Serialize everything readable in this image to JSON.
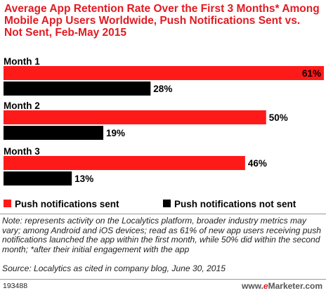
{
  "chart_data": {
    "type": "bar",
    "orientation": "horizontal",
    "title": "Average App Retention Rate Over the First 3 Months* Among Mobile App Users Worldwide, Push Notifications Sent vs. Not Sent, Feb-May 2015",
    "categories": [
      "Month 1",
      "Month 2",
      "Month 3"
    ],
    "series": [
      {
        "name": "Push notifications sent",
        "values": [
          61,
          50,
          46
        ],
        "labels": [
          "61%",
          "50%",
          "46%"
        ],
        "color": "#ff1a1a"
      },
      {
        "name": "Push notifications not sent",
        "values": [
          28,
          19,
          13
        ],
        "labels": [
          "28%",
          "19%",
          "13%"
        ],
        "color": "#000000"
      }
    ],
    "xlim": [
      0,
      61
    ],
    "grid": false,
    "legend_position": "bottom"
  },
  "note": "Note: represents activity on the Localytics platform, broader industry metrics may vary; among Android and iOS devices; read as 61% of new app users receiving push notifications launched the app within the first month, while 50% did within the second month; *after their initial engagement with the app",
  "source": "Source: Localytics as cited in company blog, June 30, 2015",
  "chart_id": "193488",
  "brand": {
    "prefix": "www.",
    "accent": "e",
    "name": "Marketer",
    "suffix": ".com"
  }
}
